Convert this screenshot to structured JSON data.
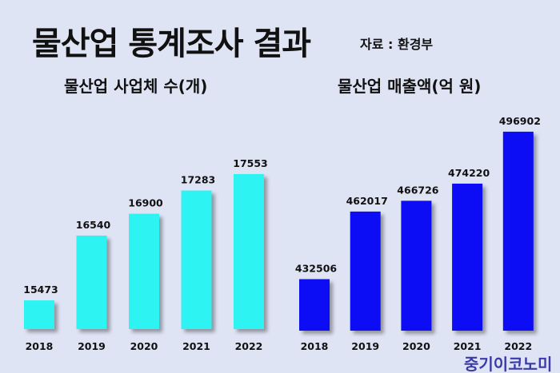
{
  "title": "물산업 통계조사 결과",
  "source": "자료 : 환경부",
  "watermark": "중기이코노미",
  "chart_data": [
    {
      "type": "bar",
      "title": "물산업 사업체 수(개)",
      "categories": [
        "2018",
        "2019",
        "2020",
        "2021",
        "2022"
      ],
      "values": [
        15473,
        16540,
        16900,
        17283,
        17553
      ],
      "labels": [
        "15473",
        "16540",
        "16900",
        "17283",
        "17553"
      ],
      "ylim": [
        15000,
        18000
      ],
      "color": "#2ef3f3",
      "grid": false
    },
    {
      "type": "bar",
      "title": "물산업 매출액(억 원)",
      "categories": [
        "2018",
        "2019",
        "2020",
        "2021",
        "2022"
      ],
      "values": [
        432506,
        462017,
        466726,
        474220,
        496902
      ],
      "labels": [
        "432506",
        "462017",
        "466726",
        "474220",
        "496902"
      ],
      "ylim": [
        410000,
        500000
      ],
      "color": "#0a0af5",
      "grid": false
    }
  ]
}
